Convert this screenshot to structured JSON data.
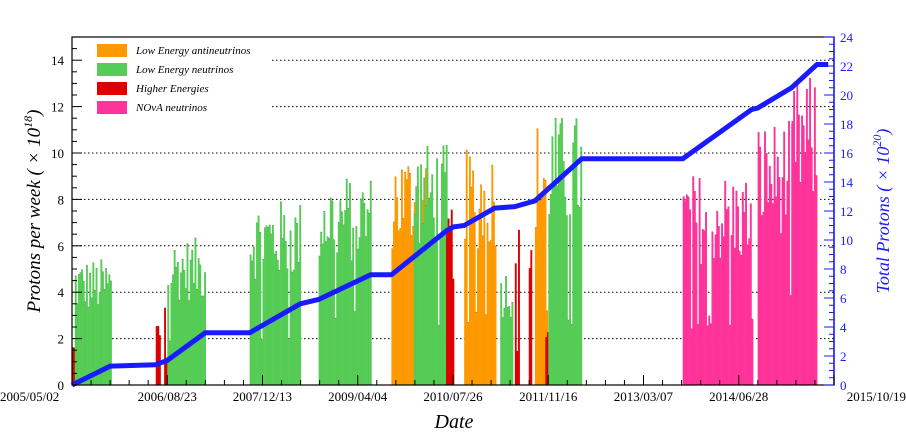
{
  "chart_data": {
    "type": "bar",
    "xlabel": "Date",
    "ylabel_left": "Protons per week ( × 10",
    "ylabel_left_exp": "18",
    "ylabel_left_close": ")",
    "ylabel_right": "Total Protons ( × 10",
    "ylabel_right_exp": "20",
    "ylabel_right_close": ")",
    "x_ticks": [
      "2005/05/02",
      "2006/08/23",
      "2007/12/13",
      "2009/04/04",
      "2010/07/26",
      "2011/11/16",
      "2013/03/07",
      "2014/06/28",
      "2015/10/19"
    ],
    "xlim": [
      "2005/05/02",
      "2015/10/19"
    ],
    "ylim_left": [
      0,
      15
    ],
    "ylim_right": [
      0,
      24
    ],
    "left_ticks": [
      0,
      2,
      4,
      6,
      8,
      10,
      12,
      14
    ],
    "right_ticks": [
      0,
      2,
      4,
      6,
      8,
      10,
      12,
      14,
      16,
      18,
      20,
      22,
      24
    ],
    "gridlines": "dotted horizontal at left major ticks",
    "legend": [
      {
        "label": "Low Energy antineutrinos",
        "color": "#ff9900"
      },
      {
        "label": "Low Energy neutrinos",
        "color": "#55cc55"
      },
      {
        "label": "Higher Energies",
        "color": "#dd0000"
      },
      {
        "label": "NOvA neutrinos",
        "color": "#ff3399"
      }
    ],
    "legend_position": "top-left",
    "cumulative_color": "#1a1aff",
    "periods": [
      {
        "series": "Higher Energies",
        "start": "2005/05/02",
        "end": "2005/05/16",
        "weekly_level": 1.5
      },
      {
        "series": "Low Energy neutrinos",
        "start": "2005/05/16",
        "end": "2005/11/10",
        "weekly_level": 4.3
      },
      {
        "series": "Higher Energies",
        "start": "2006/06/26",
        "end": "2006/07/17",
        "weekly_level": 2.3
      },
      {
        "series": "Higher Energies",
        "start": "2006/08/07",
        "end": "2006/08/23",
        "weekly_level": 3.5
      },
      {
        "series": "Low Energy neutrinos",
        "start": "2006/08/23",
        "end": "2007/03/01",
        "weekly_level": 5.0
      },
      {
        "series": "Low Energy neutrinos",
        "start": "2007/10/10",
        "end": "2008/06/20",
        "weekly_level": 6.3
      },
      {
        "series": "Low Energy neutrinos",
        "start": "2008/09/20",
        "end": "2009/06/08",
        "weekly_level": 7.2
      },
      {
        "series": "Low Energy antineutrinos",
        "start": "2009/09/20",
        "end": "2010/03/20",
        "weekly_level": 8.0
      },
      {
        "series": "Low Energy neutrinos",
        "start": "2010/01/10",
        "end": "2010/06/20",
        "weekly_level": 8.2
      },
      {
        "series": "Higher Energies",
        "start": "2010/06/21",
        "end": "2010/07/26",
        "weekly_level": 6.2
      },
      {
        "series": "Low Energy antineutrinos",
        "start": "2010/09/20",
        "end": "2011/02/20",
        "weekly_level": 8.0
      },
      {
        "series": "Low Energy neutrinos",
        "start": "2011/03/20",
        "end": "2011/05/20",
        "weekly_level": 4.0
      },
      {
        "series": "Higher Energies",
        "start": "2011/06/01",
        "end": "2011/06/25",
        "weekly_level": 5.5
      },
      {
        "series": "Higher Energies",
        "start": "2011/08/10",
        "end": "2011/08/24",
        "weekly_level": 5.0
      },
      {
        "series": "Low Energy antineutrinos",
        "start": "2011/09/10",
        "end": "2011/11/10",
        "weekly_level": 9.0
      },
      {
        "series": "Higher Energies",
        "start": "2011/11/01",
        "end": "2011/11/20",
        "weekly_level": 2.0
      },
      {
        "series": "Low Energy neutrinos",
        "start": "2011/11/16",
        "end": "2012/05/01",
        "weekly_level": 9.2
      },
      {
        "series": "NOvA neutrinos",
        "start": "2013/09/20",
        "end": "2014/09/01",
        "weekly_level": 7.2
      },
      {
        "series": "NOvA neutrinos",
        "start": "2014/10/01",
        "end": "2015/03/20",
        "weekly_level": 9.0
      },
      {
        "series": "NOvA neutrinos",
        "start": "2015/03/20",
        "end": "2015/07/25",
        "weekly_level": 10.5
      }
    ],
    "cumulative_series": {
      "name": "Total Protons",
      "points": [
        [
          "2005/05/02",
          0.0
        ],
        [
          "2005/11/10",
          1.3
        ],
        [
          "2006/06/26",
          1.4
        ],
        [
          "2006/08/23",
          1.7
        ],
        [
          "2007/03/01",
          3.6
        ],
        [
          "2007/10/10",
          3.6
        ],
        [
          "2008/06/20",
          5.6
        ],
        [
          "2008/09/20",
          5.9
        ],
        [
          "2009/06/08",
          7.6
        ],
        [
          "2009/09/20",
          7.6
        ],
        [
          "2010/06/20",
          10.6
        ],
        [
          "2010/07/26",
          10.9
        ],
        [
          "2010/09/20",
          11.0
        ],
        [
          "2011/02/20",
          12.2
        ],
        [
          "2011/06/01",
          12.3
        ],
        [
          "2011/09/10",
          12.7
        ],
        [
          "2012/05/01",
          15.6
        ],
        [
          "2013/09/20",
          15.6
        ],
        [
          "2014/09/01",
          19.0
        ],
        [
          "2014/10/01",
          19.1
        ],
        [
          "2015/03/20",
          20.5
        ],
        [
          "2015/07/25",
          22.1
        ],
        [
          "2015/09/20",
          22.1
        ]
      ]
    }
  }
}
